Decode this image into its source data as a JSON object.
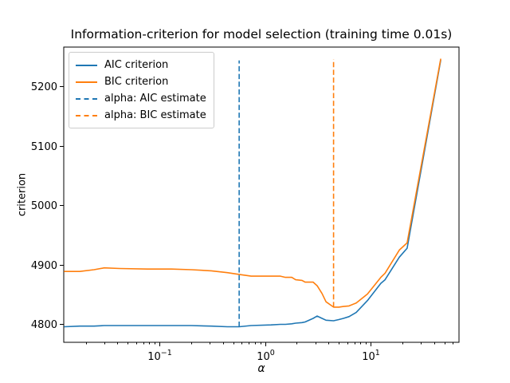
{
  "figure": {
    "background": "#ffffff",
    "text_color": "#000000"
  },
  "chart_data": {
    "type": "line",
    "title": "Information-criterion for model selection (training time 0.01s)",
    "xlabel": "α",
    "ylabel": "criterion",
    "xscale": "log",
    "grid": false,
    "xlim": [
      0.0124,
      68.8
    ],
    "ylim": [
      4769.8,
      5266.4
    ],
    "xticks": [
      {
        "value": 0.1,
        "base": "10",
        "exp": "−1"
      },
      {
        "value": 1,
        "base": "10",
        "exp": "0"
      },
      {
        "value": 10,
        "base": "10",
        "exp": "1"
      }
    ],
    "yticks": [
      4800,
      4900,
      5000,
      5100,
      5200
    ],
    "x_alphas": [
      0.0126,
      0.0176,
      0.024,
      0.03,
      0.042,
      0.077,
      0.13,
      0.2,
      0.31,
      0.44,
      0.569,
      0.74,
      1.14,
      1.4,
      1.56,
      1.79,
      1.95,
      2.24,
      2.4,
      2.86,
      3.12,
      3.47,
      3.78,
      4.46,
      5.0,
      5.53,
      6.25,
      7.31,
      9.33,
      12.5,
      13.7,
      18.7,
      22.2,
      46.1
    ],
    "series": [
      {
        "name": "AIC criterion",
        "color": "#1f77b4",
        "style": "solid",
        "values": [
          4796,
          4797,
          4797,
          4798,
          4798,
          4798,
          4798,
          4798,
          4797,
          4796,
          4796,
          4798,
          4799,
          4800,
          4800,
          4801,
          4802,
          4803,
          4804,
          4810,
          4814,
          4810,
          4807,
          4806,
          4808,
          4810,
          4813,
          4820,
          4840,
          4869,
          4875,
          4913,
          4928,
          5244
        ]
      },
      {
        "name": "BIC criterion",
        "color": "#ff7f0e",
        "style": "solid",
        "values": [
          4889,
          4889,
          4892,
          4895,
          4894,
          4893,
          4893,
          4892,
          4890,
          4887,
          4884,
          4881,
          4881,
          4881,
          4879,
          4879,
          4875,
          4874,
          4871,
          4871,
          4865,
          4852,
          4838,
          4829,
          4829,
          4830,
          4831,
          4836,
          4851,
          4879,
          4886,
          4925,
          4937,
          5246
        ]
      }
    ],
    "vlines": [
      {
        "name": "alpha: AIC estimate",
        "color": "#1f77b4",
        "style": "dashed",
        "x": 0.569,
        "ymin": 4796,
        "ymax": 5244
      },
      {
        "name": "alpha: BIC estimate",
        "color": "#ff7f0e",
        "style": "dashed",
        "x": 4.46,
        "ymin": 4829,
        "ymax": 5246
      }
    ],
    "legend": {
      "position": "upper-left",
      "entries": [
        {
          "label": "AIC criterion",
          "color": "#1f77b4",
          "dash": false
        },
        {
          "label": "BIC criterion",
          "color": "#ff7f0e",
          "dash": false
        },
        {
          "label": "alpha: AIC estimate",
          "color": "#1f77b4",
          "dash": true
        },
        {
          "label": "alpha: BIC estimate",
          "color": "#ff7f0e",
          "dash": true
        }
      ]
    }
  }
}
